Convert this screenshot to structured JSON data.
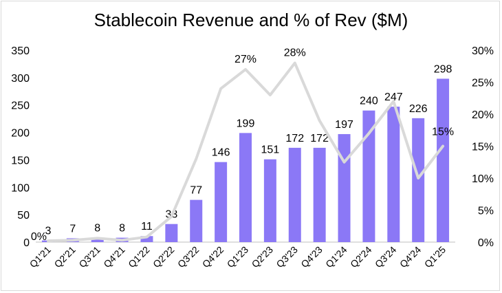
{
  "chart_data": {
    "type": "bar",
    "title": "Stablecoin Revenue and % of Rev ($M)",
    "categories": [
      "Q1'21",
      "Q2'21",
      "Q3'21",
      "Q4'21",
      "Q1'22",
      "Q2'22",
      "Q3'22",
      "Q4'22",
      "Q1'23",
      "Q2'23",
      "Q3'23",
      "Q4'23",
      "Q1'24",
      "Q2'24",
      "Q3'24",
      "Q4'24",
      "Q1'25"
    ],
    "series": [
      {
        "type": "bar",
        "axis": "left",
        "color": "#8b78f6",
        "values": [
          3,
          7,
          8,
          8,
          11,
          33,
          77,
          146,
          199,
          151,
          172,
          172,
          197,
          240,
          247,
          226,
          298
        ],
        "data_labels": [
          "3",
          "7",
          "8",
          "8",
          "11",
          "33",
          "77",
          "146",
          "199",
          "151",
          "172",
          "172",
          "197",
          "240",
          "247",
          "226",
          "298"
        ]
      },
      {
        "type": "line",
        "axis": "right",
        "color": "#d9d9d9",
        "values": [
          0.002,
          0.003,
          0.006,
          0.003,
          0.008,
          0.04,
          0.13,
          0.24,
          0.27,
          0.23,
          0.28,
          0.19,
          0.125,
          0.17,
          0.22,
          0.1,
          0.15
        ],
        "point_labels": {
          "0": "0%",
          "8": "27%",
          "10": "28%",
          "16": "15%"
        }
      }
    ],
    "y_left": {
      "lim": [
        0,
        350
      ],
      "ticks": [
        "0",
        "50",
        "100",
        "150",
        "200",
        "250",
        "300",
        "350"
      ]
    },
    "y_right": {
      "lim": [
        0,
        0.3
      ],
      "ticks": [
        "0%",
        "5%",
        "10%",
        "15%",
        "20%",
        "25%",
        "30%"
      ]
    },
    "grid": false,
    "legend": "none"
  }
}
